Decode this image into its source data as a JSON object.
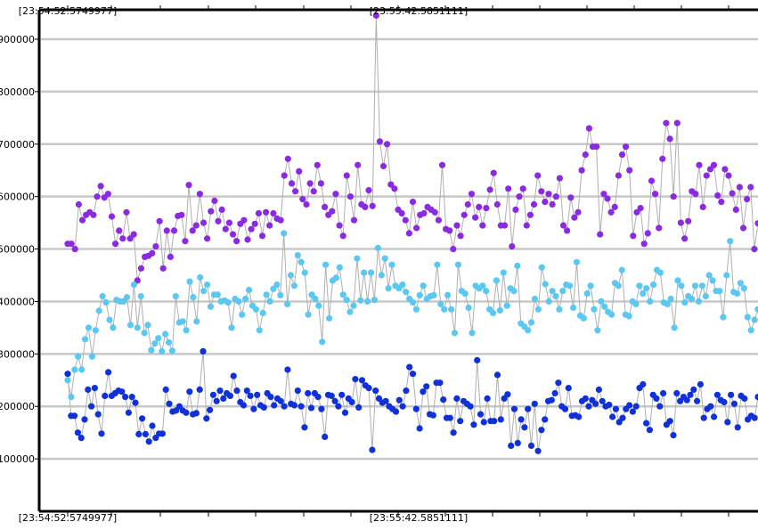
{
  "chart_data": {
    "type": "scatter",
    "title": "",
    "xlabel": "",
    "ylabel": "",
    "ylim": [
      0,
      950000
    ],
    "y_ticks": [
      100000,
      200000,
      300000,
      400000,
      500000,
      600000,
      700000,
      800000,
      900000
    ],
    "y_tick_labels": [
      "100000",
      "200000",
      "300000",
      "400000",
      "500000",
      "600000",
      "700000",
      "800000",
      "900000"
    ],
    "x_time_labels": [
      "23:54:52.5749977",
      "23:55:42.5851111"
    ],
    "x_time_labels_top": [
      "23:54:52.5749977",
      "23:55:42.5851111"
    ],
    "grid": "horizontal",
    "connector_color": "#b0b0b0",
    "series": [
      {
        "color": "#8a2be2",
        "values": [
          510000,
          510000,
          500000,
          585000,
          555000,
          565000,
          570000,
          565000,
          600000,
          620000,
          598000,
          605000,
          562000,
          510000,
          535000,
          520000,
          570000,
          520000,
          528000,
          440000,
          463000,
          485000,
          487000,
          492000,
          505000,
          553000,
          463000,
          535000,
          485000,
          535000,
          563000,
          565000,
          515000,
          622000,
          535000,
          545000,
          605000,
          550000,
          520000,
          572000,
          592000,
          553000,
          575000,
          538000,
          550000,
          528000,
          515000,
          548000,
          555000,
          518000,
          538000,
          548000,
          568000,
          525000,
          570000,
          545000,
          568000,
          558000,
          555000,
          640000,
          672000,
          625000,
          610000,
          648000,
          595000,
          585000,
          625000,
          610000,
          660000,
          625000,
          580000,
          565000,
          572000,
          605000,
          545000,
          525000,
          640000,
          600000,
          555000,
          660000,
          585000,
          580000,
          612000,
          582000,
          945000,
          705000,
          658000,
          700000,
          623000,
          615000,
          575000,
          568000,
          555000,
          530000,
          590000,
          540000,
          565000,
          568000,
          580000,
          575000,
          570000,
          555000,
          660000,
          538000,
          535000,
          500000,
          545000,
          525000,
          565000,
          585000,
          605000,
          560000,
          580000,
          545000,
          578000,
          613000,
          645000,
          585000,
          545000,
          545000,
          615000,
          505000,
          575000,
          600000,
          615000,
          545000,
          565000,
          585000,
          640000,
          610000,
          590000,
          605000,
          585000,
          600000,
          635000,
          545000,
          535000,
          598000,
          560000,
          570000,
          650000,
          680000,
          730000,
          695000,
          695000,
          528000,
          605000,
          596000,
          570000,
          580000,
          640000,
          680000,
          695000,
          650000,
          525000,
          570000,
          578000,
          510000,
          530000,
          630000,
          605000,
          540000,
          672000,
          740000,
          710000,
          600000,
          740000,
          550000,
          520000,
          553000,
          610000,
          605000,
          660000,
          580000,
          640000,
          652000,
          660000,
          602000,
          590000,
          652000,
          640000,
          606000,
          575000,
          618000,
          540000,
          595000,
          618000,
          500000,
          549000
        ]
      },
      {
        "color": "#5ac8f0",
        "values": [
          250000,
          218000,
          270000,
          295000,
          270000,
          328000,
          350000,
          295000,
          345000,
          382000,
          410000,
          398000,
          365000,
          350000,
          403000,
          400000,
          400000,
          408000,
          355000,
          432000,
          350000,
          410000,
          340000,
          355000,
          307000,
          320000,
          330000,
          305000,
          338000,
          322000,
          306000,
          410000,
          360000,
          362000,
          345000,
          438000,
          408000,
          362000,
          446000,
          420000,
          432000,
          390000,
          413000,
          413000,
          400000,
          402000,
          398000,
          350000,
          405000,
          400000,
          375000,
          405000,
          422000,
          392000,
          385000,
          345000,
          378000,
          413000,
          400000,
          424000,
          432000,
          412000,
          530000,
          395000,
          450000,
          430000,
          488000,
          475000,
          455000,
          375000,
          413000,
          405000,
          392000,
          323000,
          470000,
          368000,
          440000,
          445000,
          465000,
          413000,
          403000,
          380000,
          392000,
          482000,
          402000,
          455000,
          400000,
          455000,
          403000,
          502000,
          450000,
          482000,
          425000,
          470000,
          430000,
          425000,
          432000,
          418000,
          405000,
          398000,
          385000,
          412000,
          430000,
          405000,
          410000,
          412000,
          470000,
          395000,
          385000,
          412000,
          385000,
          340000,
          470000,
          420000,
          415000,
          388000,
          340000,
          430000,
          425000,
          430000,
          420000,
          385000,
          378000,
          440000,
          383000,
          455000,
          392000,
          425000,
          420000,
          468000,
          358000,
          352000,
          345000,
          360000,
          405000,
          385000,
          465000,
          433000,
          400000,
          420000,
          410000,
          385000,
          420000,
          432000,
          430000,
          388000,
          475000,
          373000,
          368000,
          415000,
          430000,
          385000,
          345000,
          400000,
          390000,
          380000,
          375000,
          435000,
          430000,
          460000,
          375000,
          372000,
          400000,
          395000,
          430000,
          415000,
          425000,
          400000,
          432000,
          460000,
          455000,
          398000,
          395000,
          405000,
          350000,
          440000,
          430000,
          398000,
          410000,
          405000,
          430000,
          400000,
          430000,
          410000,
          450000,
          440000,
          420000,
          420000,
          370000,
          450000,
          515000,
          418000,
          415000,
          435000,
          425000,
          370000,
          345000,
          365000,
          385000
        ]
      },
      {
        "color": "#1030d8",
        "values": [
          262000,
          182000,
          182000,
          150000,
          140000,
          175000,
          232000,
          200000,
          235000,
          185000,
          148000,
          220000,
          265000,
          220000,
          225000,
          230000,
          228000,
          218000,
          188000,
          218000,
          207000,
          147000,
          177000,
          147000,
          133000,
          163000,
          140000,
          148000,
          148000,
          232000,
          205000,
          190000,
          192000,
          200000,
          192000,
          188000,
          228000,
          185000,
          187000,
          232000,
          305000,
          177000,
          193000,
          222000,
          210000,
          230000,
          215000,
          225000,
          220000,
          258000,
          230000,
          208000,
          202000,
          230000,
          220000,
          195000,
          222000,
          202000,
          198000,
          225000,
          218000,
          202000,
          215000,
          210000,
          200000,
          270000,
          205000,
          202000,
          230000,
          200000,
          160000,
          225000,
          197000,
          225000,
          218000,
          195000,
          142000,
          222000,
          220000,
          210000,
          200000,
          222000,
          188000,
          215000,
          208000,
          252000,
          198000,
          250000,
          240000,
          235000,
          117000,
          230000,
          215000,
          207000,
          210000,
          200000,
          195000,
          190000,
          212000,
          200000,
          230000,
          275000,
          262000,
          195000,
          158000,
          228000,
          238000,
          185000,
          183000,
          245000,
          245000,
          213000,
          178000,
          178000,
          150000,
          215000,
          172000,
          210000,
          205000,
          200000,
          165000,
          288000,
          185000,
          170000,
          215000,
          172000,
          172000,
          260000,
          175000,
          215000,
          223000,
          125000,
          195000,
          130000,
          175000,
          160000,
          195000,
          125000,
          205000,
          115000,
          155000,
          175000,
          210000,
          212000,
          225000,
          245000,
          200000,
          195000,
          235000,
          182000,
          183000,
          180000,
          210000,
          215000,
          200000,
          212000,
          205000,
          232000,
          210000,
          200000,
          203000,
          180000,
          195000,
          170000,
          178000,
          195000,
          202000,
          190000,
          200000,
          235000,
          242000,
          168000,
          155000,
          222000,
          215000,
          200000,
          225000,
          165000,
          172000,
          145000,
          225000,
          210000,
          218000,
          212000,
          222000,
          232000,
          210000,
          242000,
          178000,
          195000,
          200000,
          180000,
          222000,
          212000,
          208000,
          170000,
          222000,
          205000,
          160000,
          220000,
          215000,
          175000,
          182000,
          178000,
          218000
        ]
      }
    ]
  }
}
